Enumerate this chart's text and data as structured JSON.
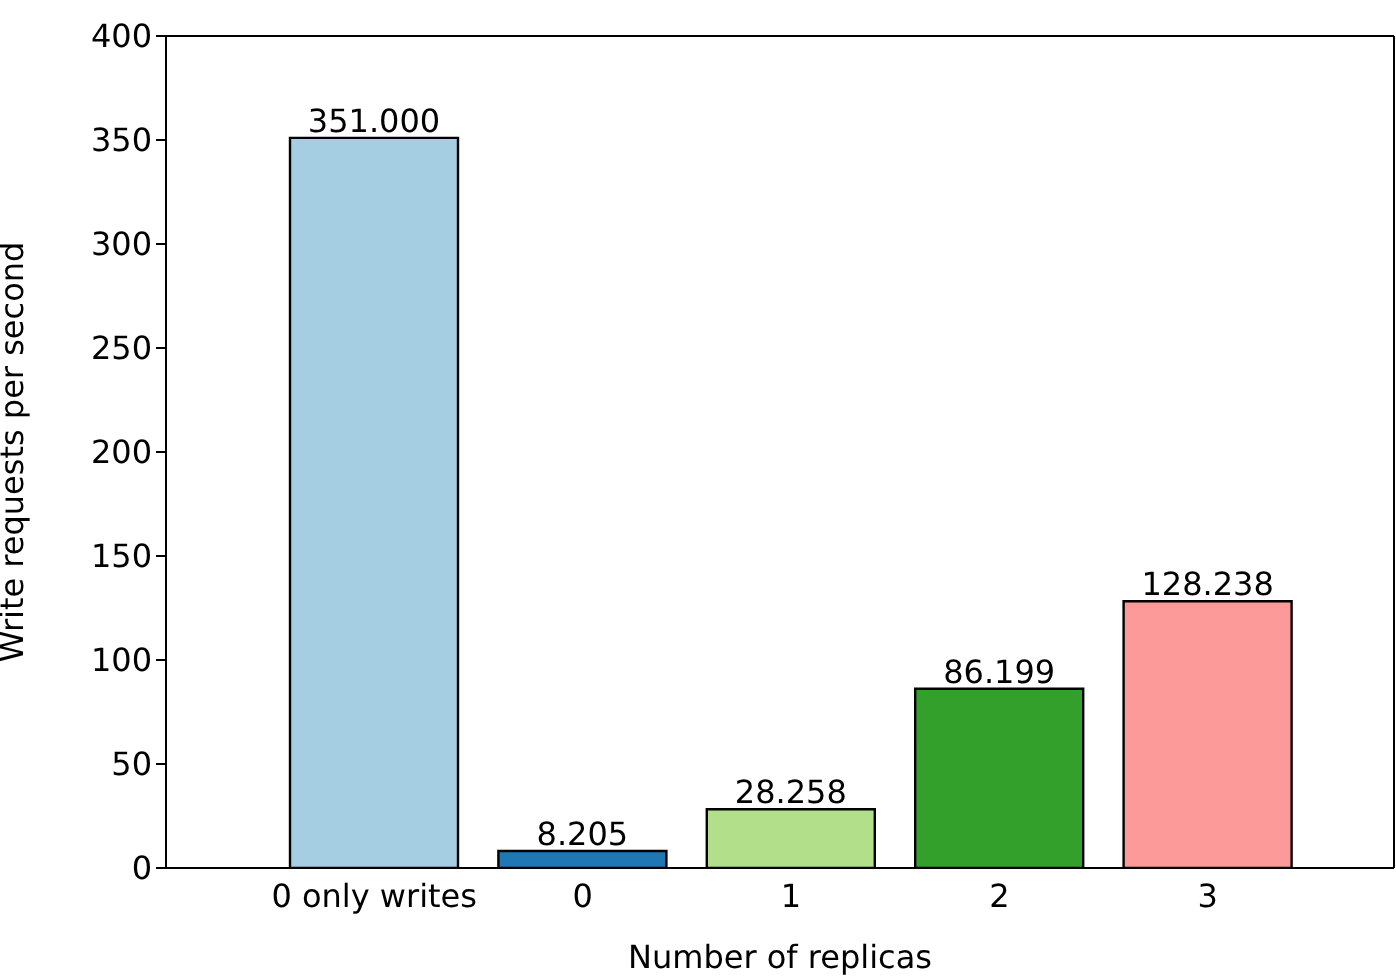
{
  "chart_data": {
    "type": "bar",
    "xlabel": "Number of replicas",
    "ylabel": "Write requests per second",
    "categories": [
      "0 only writes",
      "0",
      "1",
      "2",
      "3"
    ],
    "values": [
      351.0,
      8.205,
      28.258,
      86.199,
      128.238
    ],
    "value_labels": [
      "351.000",
      "8.205",
      "28.258",
      "86.199",
      "128.238"
    ],
    "colors": [
      "#a6cee3",
      "#1f78b4",
      "#b2df8a",
      "#33a02c",
      "#fb9a99"
    ],
    "ylim": [
      0,
      400
    ],
    "yticks": [
      0,
      50,
      100,
      150,
      200,
      250,
      300,
      350,
      400
    ]
  }
}
